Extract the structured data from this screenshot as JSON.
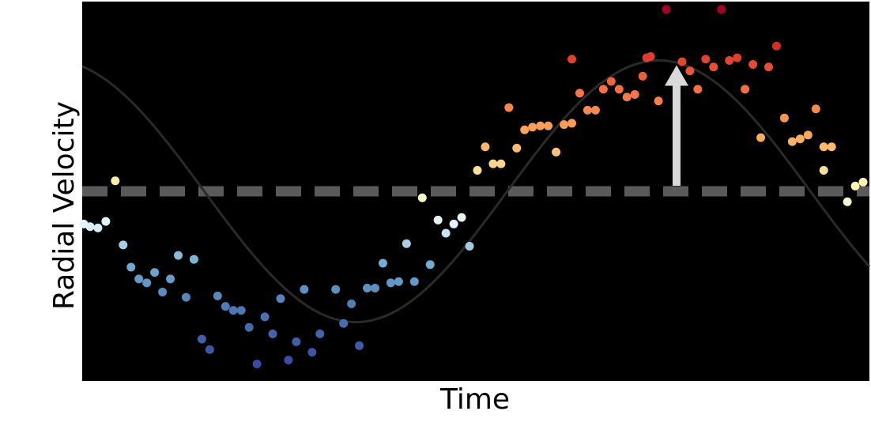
{
  "chart_data": {
    "type": "scatter",
    "title": "",
    "xlabel": "Time",
    "ylabel": "Radial Velocity",
    "xlim": [
      0,
      100
    ],
    "ylim": [
      -1.45,
      1.45
    ],
    "grid": false,
    "legend": "none",
    "background": "#000000",
    "baseline": {
      "y": 0,
      "style": "dashed",
      "color": "#5a5a5a"
    },
    "model_curve": {
      "type": "sine",
      "amplitude": 1.0,
      "period": 77,
      "phase_zero_crossing_x": 54,
      "color": "#2a2a2a"
    },
    "annotation_arrow": {
      "x": 75.5,
      "from_y": 0,
      "to_y": 1.0,
      "color": "#d9d9d9"
    },
    "points": [
      {
        "x": 0.2,
        "y": -0.25
      },
      {
        "x": 1.0,
        "y": -0.27
      },
      {
        "x": 2.0,
        "y": -0.28
      },
      {
        "x": 3.0,
        "y": -0.23
      },
      {
        "x": 4.2,
        "y": 0.08
      },
      {
        "x": 5.2,
        "y": -0.41
      },
      {
        "x": 6.2,
        "y": -0.58
      },
      {
        "x": 7.2,
        "y": -0.67
      },
      {
        "x": 8.2,
        "y": -0.7
      },
      {
        "x": 9.2,
        "y": -0.62
      },
      {
        "x": 10.2,
        "y": -0.77
      },
      {
        "x": 11.2,
        "y": -0.67
      },
      {
        "x": 12.2,
        "y": -0.49
      },
      {
        "x": 13.2,
        "y": -0.81
      },
      {
        "x": 14.2,
        "y": -0.52
      },
      {
        "x": 15.2,
        "y": -1.13
      },
      {
        "x": 16.2,
        "y": -1.21
      },
      {
        "x": 17.2,
        "y": -0.8
      },
      {
        "x": 18.2,
        "y": -0.88
      },
      {
        "x": 19.2,
        "y": -0.91
      },
      {
        "x": 20.2,
        "y": -0.91
      },
      {
        "x": 21.2,
        "y": -1.04
      },
      {
        "x": 22.2,
        "y": -1.32
      },
      {
        "x": 23.2,
        "y": -0.96
      },
      {
        "x": 24.2,
        "y": -1.09
      },
      {
        "x": 25.2,
        "y": -0.82
      },
      {
        "x": 26.2,
        "y": -1.29
      },
      {
        "x": 27.2,
        "y": -1.15
      },
      {
        "x": 28.2,
        "y": -0.75
      },
      {
        "x": 29.2,
        "y": -1.23
      },
      {
        "x": 30.2,
        "y": -1.09
      },
      {
        "x": 32.2,
        "y": -0.75
      },
      {
        "x": 33.2,
        "y": -1.01
      },
      {
        "x": 34.2,
        "y": -0.86
      },
      {
        "x": 35.2,
        "y": -1.18
      },
      {
        "x": 36.2,
        "y": -0.74
      },
      {
        "x": 37.2,
        "y": -0.74
      },
      {
        "x": 38.2,
        "y": -0.55
      },
      {
        "x": 39.2,
        "y": -0.7
      },
      {
        "x": 40.2,
        "y": -0.69
      },
      {
        "x": 41.2,
        "y": -0.4
      },
      {
        "x": 42.2,
        "y": -0.69
      },
      {
        "x": 43.2,
        "y": -0.05
      },
      {
        "x": 44.2,
        "y": -0.56
      },
      {
        "x": 45.2,
        "y": -0.22
      },
      {
        "x": 46.2,
        "y": -0.32
      },
      {
        "x": 47.2,
        "y": -0.25
      },
      {
        "x": 48.2,
        "y": -0.2
      },
      {
        "x": 49.2,
        "y": -0.42
      },
      {
        "x": 50.2,
        "y": 0.16
      },
      {
        "x": 51.2,
        "y": 0.34
      },
      {
        "x": 52.2,
        "y": 0.21
      },
      {
        "x": 53.2,
        "y": 0.21
      },
      {
        "x": 54.2,
        "y": 0.64
      },
      {
        "x": 55.2,
        "y": 0.33
      },
      {
        "x": 56.2,
        "y": 0.47
      },
      {
        "x": 57.2,
        "y": 0.49
      },
      {
        "x": 58.2,
        "y": 0.5
      },
      {
        "x": 59.2,
        "y": 0.5
      },
      {
        "x": 60.2,
        "y": 0.3
      },
      {
        "x": 61.2,
        "y": 0.51
      },
      {
        "x": 62.2,
        "y": 0.52
      },
      {
        "x": 62.2,
        "y": 1.01
      },
      {
        "x": 63.2,
        "y": 0.75
      },
      {
        "x": 64.2,
        "y": 0.62
      },
      {
        "x": 65.2,
        "y": 0.62
      },
      {
        "x": 66.2,
        "y": 0.78
      },
      {
        "x": 67.2,
        "y": 0.84
      },
      {
        "x": 68.2,
        "y": 0.78
      },
      {
        "x": 69.2,
        "y": 0.72
      },
      {
        "x": 70.2,
        "y": 0.74
      },
      {
        "x": 71.2,
        "y": 0.88
      },
      {
        "x": 71.7,
        "y": 1.02
      },
      {
        "x": 72.2,
        "y": 1.03
      },
      {
        "x": 73.2,
        "y": 0.69
      },
      {
        "x": 74.2,
        "y": 1.39
      },
      {
        "x": 76.2,
        "y": 0.99
      },
      {
        "x": 77.2,
        "y": 0.92
      },
      {
        "x": 78.2,
        "y": 0.78
      },
      {
        "x": 79.2,
        "y": 1.01
      },
      {
        "x": 80.2,
        "y": 0.95
      },
      {
        "x": 81.2,
        "y": 1.39
      },
      {
        "x": 82.2,
        "y": 1.0
      },
      {
        "x": 83.2,
        "y": 1.02
      },
      {
        "x": 84.2,
        "y": 0.78
      },
      {
        "x": 85.2,
        "y": 0.97
      },
      {
        "x": 86.2,
        "y": 0.41
      },
      {
        "x": 87.2,
        "y": 0.95
      },
      {
        "x": 88.2,
        "y": 1.11
      },
      {
        "x": 89.2,
        "y": 0.56
      },
      {
        "x": 90.2,
        "y": 0.38
      },
      {
        "x": 91.2,
        "y": 0.4
      },
      {
        "x": 92.2,
        "y": 0.43
      },
      {
        "x": 93.2,
        "y": 0.63
      },
      {
        "x": 94.2,
        "y": 0.34
      },
      {
        "x": 95.2,
        "y": 0.34
      },
      {
        "x": 94.2,
        "y": 0.16
      },
      {
        "x": 97.2,
        "y": -0.08
      },
      {
        "x": 98.2,
        "y": 0.04
      },
      {
        "x": 99.2,
        "y": 0.07
      }
    ]
  }
}
